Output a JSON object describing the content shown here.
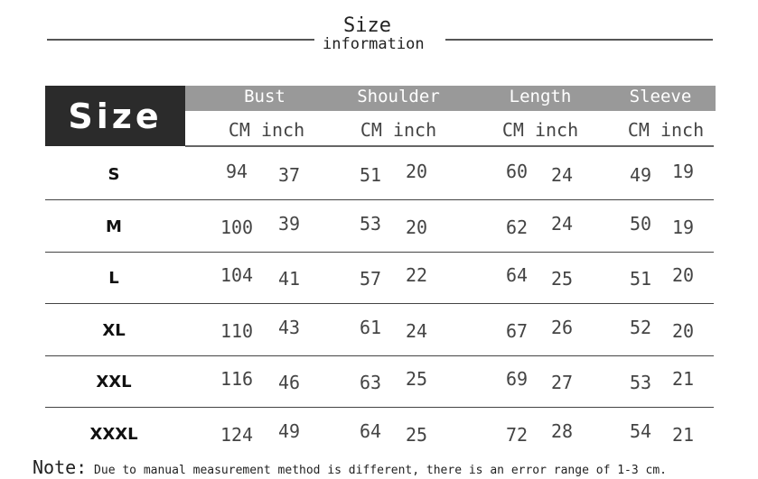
{
  "title": {
    "main": "Size",
    "sub": "information"
  },
  "table": {
    "corner_label": "Size",
    "columns": [
      {
        "label": "Bust",
        "units": "CM inch"
      },
      {
        "label": "Shoulder",
        "units": "CM inch"
      },
      {
        "label": "Length",
        "units": "CM inch"
      },
      {
        "label": "Sleeve",
        "units": "CM inch"
      }
    ],
    "rows": [
      {
        "size": "S",
        "values": [
          [
            94,
            37
          ],
          [
            51,
            20
          ],
          [
            60,
            24
          ],
          [
            49,
            19
          ]
        ]
      },
      {
        "size": "M",
        "values": [
          [
            100,
            39
          ],
          [
            53,
            20
          ],
          [
            62,
            24
          ],
          [
            50,
            19
          ]
        ]
      },
      {
        "size": "L",
        "values": [
          [
            104,
            41
          ],
          [
            57,
            22
          ],
          [
            64,
            25
          ],
          [
            51,
            20
          ]
        ]
      },
      {
        "size": "XL",
        "values": [
          [
            110,
            43
          ],
          [
            61,
            24
          ],
          [
            67,
            26
          ],
          [
            52,
            20
          ]
        ]
      },
      {
        "size": "XXL",
        "values": [
          [
            116,
            46
          ],
          [
            63,
            25
          ],
          [
            69,
            27
          ],
          [
            53,
            21
          ]
        ]
      },
      {
        "size": "XXXL",
        "values": [
          [
            124,
            49
          ],
          [
            64,
            25
          ],
          [
            72,
            28
          ],
          [
            54,
            21
          ]
        ]
      }
    ]
  },
  "note": {
    "label": "Note:",
    "text": " Due to manual measurement method is different, there is an error range of 1-3 cm."
  },
  "colors": {
    "header_dark": "#2b2b2b",
    "header_gray": "#999999"
  }
}
